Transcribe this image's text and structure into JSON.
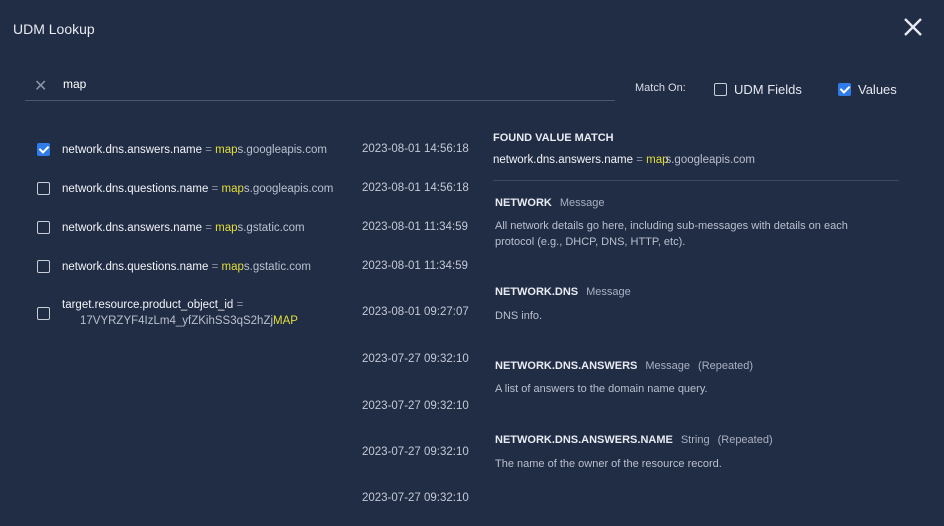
{
  "title": "UDM Lookup",
  "search": {
    "value": "map"
  },
  "match_on": {
    "label": "Match On:",
    "options": [
      {
        "label": "UDM Fields",
        "checked": false
      },
      {
        "label": "Values",
        "checked": true
      }
    ]
  },
  "results": [
    {
      "field": "network.dns.answers.name",
      "eq": "=",
      "hl": "map",
      "rest": "s.googleapis.com",
      "time": "2023-08-01 14:56:18",
      "checked": true
    },
    {
      "field": "network.dns.questions.name",
      "eq": "=",
      "hl": "map",
      "rest": "s.googleapis.com",
      "time": "2023-08-01 14:56:18",
      "checked": false
    },
    {
      "field": "network.dns.answers.name",
      "eq": "=",
      "hl": "map",
      "rest": "s.gstatic.com",
      "time": "2023-08-01 11:34:59",
      "checked": false
    },
    {
      "field": "network.dns.questions.name",
      "eq": "=",
      "hl": "map",
      "rest": "s.gstatic.com",
      "time": "2023-08-01 11:34:59",
      "checked": false
    },
    {
      "field": "target.resource.product_object_id",
      "eq": "=",
      "pre": "17VYRZYF4IzLm4_yfZKihSS3qS2hZj",
      "hl": "MAP",
      "time": "2023-08-01 09:27:07",
      "checked": false
    }
  ],
  "extra_times": [
    "2023-07-27 09:32:10",
    "2023-07-27 09:32:10",
    "2023-07-27 09:32:10",
    "2023-07-27 09:32:10"
  ],
  "detail": {
    "heading": "FOUND VALUE MATCH",
    "match": {
      "field": "network.dns.answers.name",
      "eq": "=",
      "hl": "map",
      "rest": "s.googleapis.com"
    },
    "sections": [
      {
        "name": "NETWORK",
        "type": "Message",
        "repeated": "",
        "desc": "All network details go here, including sub-messages with details on each protocol (e.g., DHCP, DNS, HTTP, etc)."
      },
      {
        "name": "NETWORK.DNS",
        "type": "Message",
        "repeated": "",
        "desc": "DNS info."
      },
      {
        "name": "NETWORK.DNS.ANSWERS",
        "type": "Message",
        "repeated": "(Repeated)",
        "desc": "A list of answers to the domain name query."
      },
      {
        "name": "NETWORK.DNS.ANSWERS.NAME",
        "type": "String",
        "repeated": "(Repeated)",
        "desc": "The name of the owner of the resource record."
      }
    ]
  },
  "colors": {
    "background": "#212c45",
    "highlight": "#e2df3a",
    "checkbox": "#2f7bea"
  }
}
